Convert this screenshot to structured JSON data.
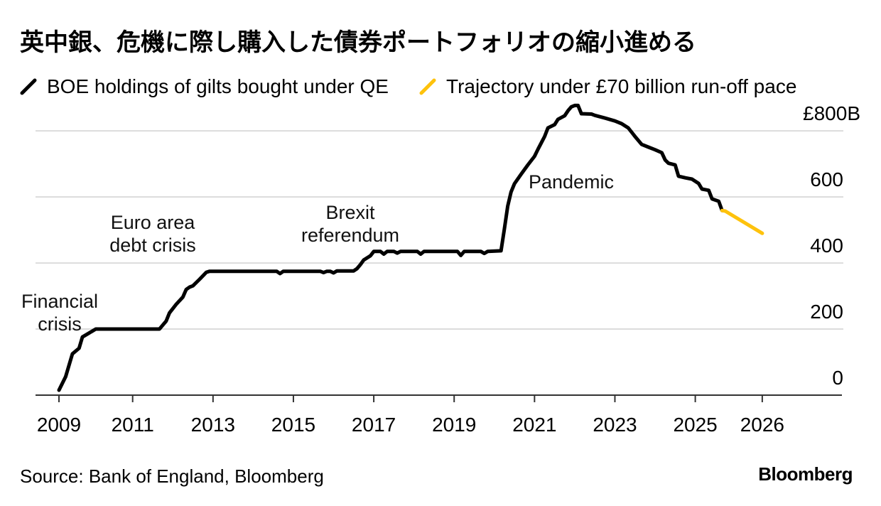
{
  "chart_data": {
    "type": "line",
    "title": "英中銀、危機に際し購入した債券ポートフォリオの縮小進める",
    "xlim": [
      "2008-08",
      "2028-09"
    ],
    "ylim": [
      0,
      880
    ],
    "grid": "horizontal",
    "y_axis_side": "right",
    "legend_position": "top-left",
    "x_ticks": [
      {
        "label": "2009",
        "date": "2009-03"
      },
      {
        "label": "2011",
        "date": "2011-01"
      },
      {
        "label": "2013",
        "date": "2013-01"
      },
      {
        "label": "2015",
        "date": "2015-01"
      },
      {
        "label": "2017",
        "date": "2017-01"
      },
      {
        "label": "2019",
        "date": "2019-01"
      },
      {
        "label": "2021",
        "date": "2021-01"
      },
      {
        "label": "2023",
        "date": "2023-01"
      },
      {
        "label": "2025",
        "date": "2025-01"
      },
      {
        "label": "2026",
        "date": "2026-09"
      }
    ],
    "y_ticks": [
      {
        "value": 0,
        "label": "0"
      },
      {
        "value": 200,
        "label": "200"
      },
      {
        "value": 400,
        "label": "400"
      },
      {
        "value": 600,
        "label": "600"
      },
      {
        "value": 800,
        "label": "£800B"
      }
    ],
    "series": [
      {
        "name": "BOE holdings of gilts bought under QE",
        "color": "#000000",
        "points": [
          [
            "2009-03",
            15
          ],
          [
            "2009-05",
            56
          ],
          [
            "2009-07",
            125
          ],
          [
            "2009-09",
            142
          ],
          [
            "2009-10",
            176
          ],
          [
            "2010-01",
            194
          ],
          [
            "2010-02",
            200
          ],
          [
            "2011-09",
            200
          ],
          [
            "2011-11",
            224
          ],
          [
            "2011-12",
            249
          ],
          [
            "2012-02",
            275
          ],
          [
            "2012-04",
            297
          ],
          [
            "2012-05",
            320
          ],
          [
            "2012-06",
            327
          ],
          [
            "2012-07",
            331
          ],
          [
            "2012-09",
            351
          ],
          [
            "2012-11",
            372
          ],
          [
            "2012-12",
            375
          ],
          [
            "2014-08",
            375
          ],
          [
            "2014-09",
            368
          ],
          [
            "2014-10",
            375
          ],
          [
            "2015-09",
            375
          ],
          [
            "2015-10",
            371
          ],
          [
            "2015-11",
            375
          ],
          [
            "2015-12",
            375
          ],
          [
            "2016-01",
            370
          ],
          [
            "2016-02",
            376
          ],
          [
            "2016-07",
            376
          ],
          [
            "2016-08",
            383
          ],
          [
            "2016-09",
            395
          ],
          [
            "2016-10",
            409
          ],
          [
            "2016-12",
            422
          ],
          [
            "2017-01",
            435
          ],
          [
            "2017-03",
            435
          ],
          [
            "2017-04",
            427
          ],
          [
            "2017-05",
            435
          ],
          [
            "2017-07",
            435
          ],
          [
            "2017-08",
            430
          ],
          [
            "2017-09",
            435
          ],
          [
            "2018-02",
            435
          ],
          [
            "2018-03",
            427
          ],
          [
            "2018-04",
            435
          ],
          [
            "2019-02",
            435
          ],
          [
            "2019-03",
            423
          ],
          [
            "2019-04",
            435
          ],
          [
            "2019-09",
            435
          ],
          [
            "2019-10",
            429
          ],
          [
            "2019-11",
            435
          ],
          [
            "2020-03",
            437
          ],
          [
            "2020-04",
            503
          ],
          [
            "2020-05",
            572
          ],
          [
            "2020-06",
            615
          ],
          [
            "2020-07",
            640
          ],
          [
            "2020-09",
            669
          ],
          [
            "2020-11",
            697
          ],
          [
            "2021-01",
            723
          ],
          [
            "2021-02",
            744
          ],
          [
            "2021-04",
            783
          ],
          [
            "2021-05",
            809
          ],
          [
            "2021-07",
            819
          ],
          [
            "2021-08",
            835
          ],
          [
            "2021-10",
            846
          ],
          [
            "2021-11",
            861
          ],
          [
            "2021-12",
            873
          ],
          [
            "2022-01",
            877
          ],
          [
            "2022-02",
            877
          ],
          [
            "2022-03",
            852
          ],
          [
            "2022-06",
            851
          ],
          [
            "2022-07",
            847
          ],
          [
            "2022-10",
            839
          ],
          [
            "2023-01",
            830
          ],
          [
            "2023-03",
            822
          ],
          [
            "2023-05",
            809
          ],
          [
            "2023-07",
            783
          ],
          [
            "2023-09",
            759
          ],
          [
            "2023-11",
            751
          ],
          [
            "2024-01",
            743
          ],
          [
            "2024-03",
            734
          ],
          [
            "2024-04",
            712
          ],
          [
            "2024-05",
            702
          ],
          [
            "2024-07",
            697
          ],
          [
            "2024-08",
            663
          ],
          [
            "2024-10",
            658
          ],
          [
            "2024-12",
            654
          ],
          [
            "2025-02",
            641
          ],
          [
            "2025-03",
            624
          ],
          [
            "2025-05",
            620
          ],
          [
            "2025-06",
            594
          ],
          [
            "2025-08",
            587
          ],
          [
            "2025-09",
            559
          ]
        ]
      },
      {
        "name": "Trajectory under £70 billion run-off pace",
        "color": "#FEC20C",
        "points": [
          [
            "2025-09",
            559
          ],
          [
            "2025-10",
            557
          ],
          [
            "2026-09",
            490
          ]
        ]
      }
    ],
    "annotations": [
      {
        "lines": [
          "Financial",
          "crisis"
        ]
      },
      {
        "lines": [
          "Euro area",
          "debt crisis"
        ]
      },
      {
        "lines": [
          "Brexit",
          "referendum"
        ]
      },
      {
        "lines": [
          "Pandemic"
        ]
      }
    ]
  },
  "source": "Source: Bank of England, Bloomberg",
  "logo": "Bloomberg"
}
